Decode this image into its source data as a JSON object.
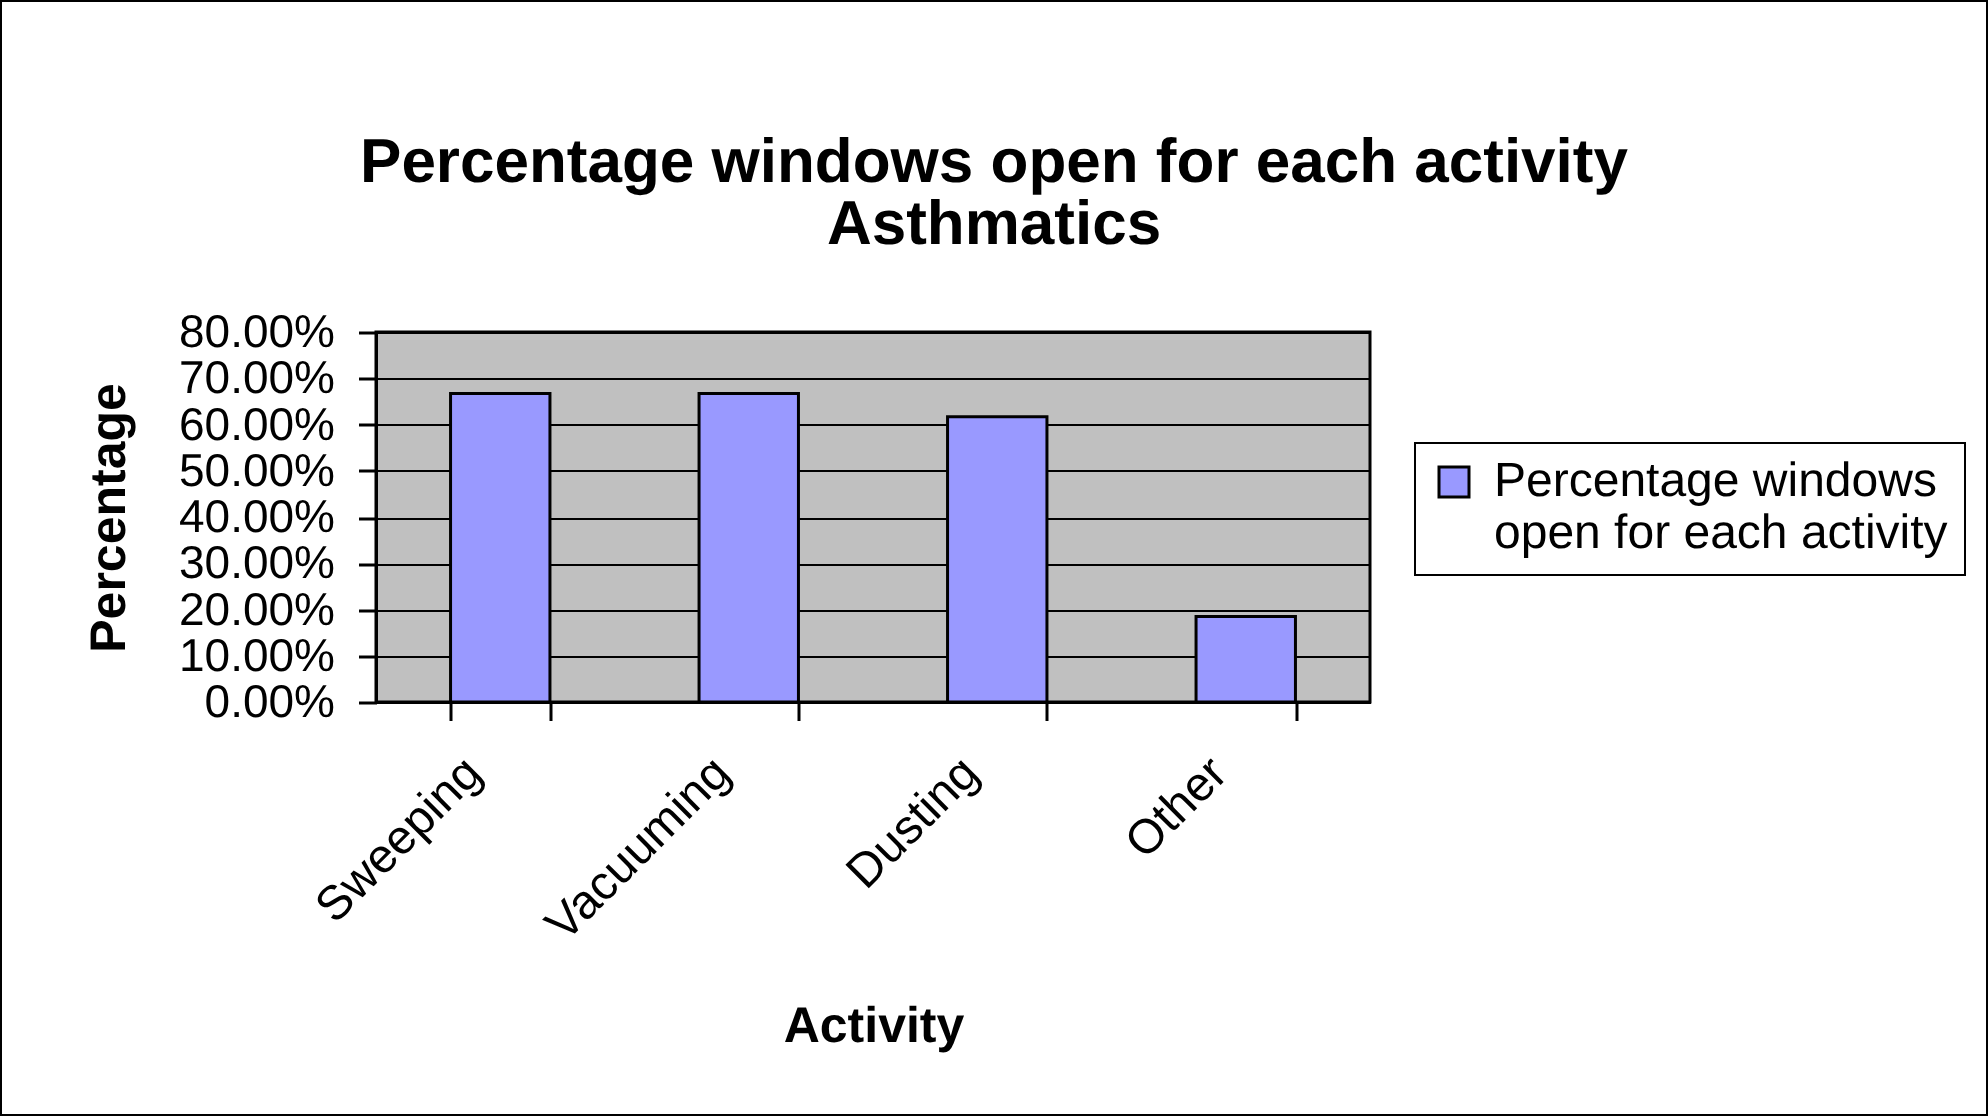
{
  "chart_data": {
    "type": "bar",
    "title": "Percentage windows open for each activity",
    "subtitle": "Asthmatics",
    "xlabel": "Activity",
    "ylabel": "Percentage",
    "categories": [
      "Sweeping",
      "Vacuuming",
      "Dusting",
      "Other"
    ],
    "series": [
      {
        "name": "Percentage windows open for each activity",
        "color": "#9999ff",
        "values": [
          66.7,
          66.7,
          61.7,
          18.5
        ]
      }
    ],
    "ylim": [
      0,
      80
    ],
    "yticks": [
      {
        "value": 0,
        "label": "0.00%"
      },
      {
        "value": 10,
        "label": "10.00%"
      },
      {
        "value": 20,
        "label": "20.00%"
      },
      {
        "value": 30,
        "label": "30.00%"
      },
      {
        "value": 40,
        "label": "40.00%"
      },
      {
        "value": 50,
        "label": "50.00%"
      },
      {
        "value": 60,
        "label": "60.00%"
      },
      {
        "value": 70,
        "label": "70.00%"
      },
      {
        "value": 80,
        "label": "80.00%"
      }
    ],
    "grid": "y",
    "legend": "right"
  }
}
